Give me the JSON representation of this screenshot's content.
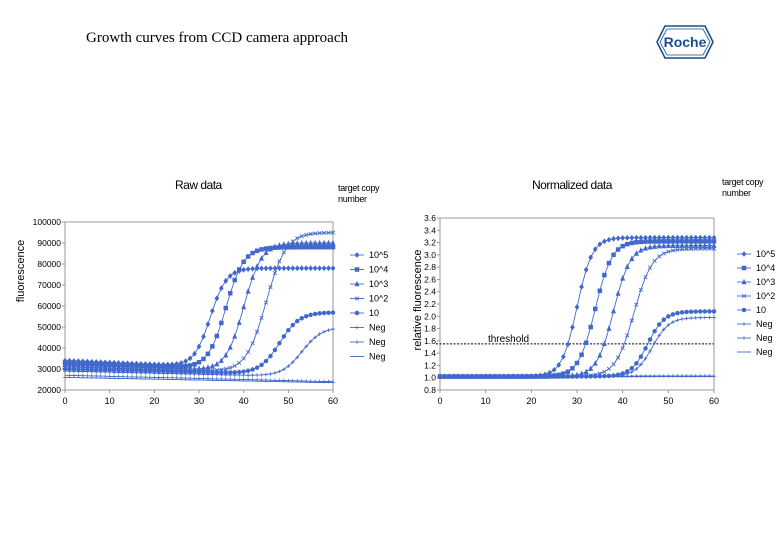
{
  "slide": {
    "title": "Growth curves from CCD camera approach",
    "logo_text": "Roche"
  },
  "colors": {
    "series": "#4169cc",
    "axis": "#999999",
    "threshold": "#000000"
  },
  "chart_data": [
    {
      "type": "line",
      "title": "Raw data",
      "legend_title": "target copy number",
      "xlabel": "",
      "ylabel": "fluorescence",
      "xlim": [
        0,
        60
      ],
      "ylim": [
        20000,
        100000
      ],
      "xticks": [
        0,
        10,
        20,
        30,
        40,
        50,
        60
      ],
      "yticks": [
        20000,
        30000,
        40000,
        50000,
        60000,
        70000,
        80000,
        90000,
        100000
      ],
      "grid": false,
      "legend_position": "right",
      "series": [
        {
          "name": "10^5",
          "marker": "diamond",
          "start": 34000,
          "base_end": 28500,
          "plateau": 78000,
          "midpoint": 32.5,
          "steepness": 0.55
        },
        {
          "name": "10^4",
          "marker": "square",
          "start": 33000,
          "base_end": 28000,
          "plateau": 88000,
          "midpoint": 36,
          "steepness": 0.5
        },
        {
          "name": "10^3",
          "marker": "triangle",
          "start": 32000,
          "base_end": 27500,
          "plateau": 90000,
          "midpoint": 40,
          "steepness": 0.5
        },
        {
          "name": "10^2",
          "marker": "x",
          "start": 31000,
          "base_end": 27500,
          "plateau": 95000,
          "midpoint": 45,
          "steepness": 0.45
        },
        {
          "name": "10",
          "marker": "circle",
          "start": 30000,
          "base_end": 27000,
          "plateau": 57000,
          "midpoint": 48,
          "steepness": 0.45
        },
        {
          "name": "Neg",
          "marker": "plus",
          "start": 29000,
          "base_end": 26000,
          "plateau": 50000,
          "midpoint": 53,
          "steepness": 0.45
        },
        {
          "name": "Neg",
          "marker": "bar",
          "start": 27000,
          "base_end": 24000,
          "plateau": 24000,
          "midpoint": 60,
          "steepness": 0.3
        },
        {
          "name": "Neg",
          "marker": "dash",
          "start": 26000,
          "base_end": 23500,
          "plateau": 23500,
          "midpoint": 60,
          "steepness": 0.3
        }
      ]
    },
    {
      "type": "line",
      "title": "Normalized data",
      "legend_title": "target copy number",
      "xlabel": "",
      "ylabel": "relative fluorescence",
      "xlim": [
        0,
        60
      ],
      "ylim": [
        0.8,
        3.6
      ],
      "xticks": [
        0,
        10,
        20,
        30,
        40,
        50,
        60
      ],
      "yticks": [
        0.8,
        1.0,
        1.2,
        1.4,
        1.6,
        1.8,
        2.0,
        2.2,
        2.4,
        2.6,
        2.8,
        3.0,
        3.2,
        3.4,
        3.6
      ],
      "grid": false,
      "legend_position": "right",
      "annotations": [
        {
          "text": "threshold",
          "y": 1.55
        }
      ],
      "series": [
        {
          "name": "10^5",
          "marker": "diamond",
          "start": 1.02,
          "base_end": 1.02,
          "plateau": 3.28,
          "midpoint": 30,
          "steepness": 0.6
        },
        {
          "name": "10^4",
          "marker": "square",
          "start": 1.02,
          "base_end": 1.02,
          "plateau": 3.22,
          "midpoint": 34,
          "steepness": 0.55
        },
        {
          "name": "10^3",
          "marker": "triangle",
          "start": 1.02,
          "base_end": 1.02,
          "plateau": 3.15,
          "midpoint": 38,
          "steepness": 0.55
        },
        {
          "name": "10^2",
          "marker": "x",
          "start": 1.02,
          "base_end": 1.02,
          "plateau": 3.1,
          "midpoint": 42.5,
          "steepness": 0.5
        },
        {
          "name": "10",
          "marker": "circle",
          "start": 1.02,
          "base_end": 1.02,
          "plateau": 2.08,
          "midpoint": 45.5,
          "steepness": 0.55
        },
        {
          "name": "Neg",
          "marker": "plus",
          "start": 1.02,
          "base_end": 1.02,
          "plateau": 1.98,
          "midpoint": 46.5,
          "steepness": 0.55
        },
        {
          "name": "Neg",
          "marker": "bar",
          "start": 1.02,
          "base_end": 1.03,
          "plateau": 1.03,
          "midpoint": 60,
          "steepness": 0.3
        },
        {
          "name": "Neg",
          "marker": "dash",
          "start": 1.01,
          "base_end": 1.02,
          "plateau": 1.02,
          "midpoint": 60,
          "steepness": 0.3
        }
      ]
    }
  ]
}
